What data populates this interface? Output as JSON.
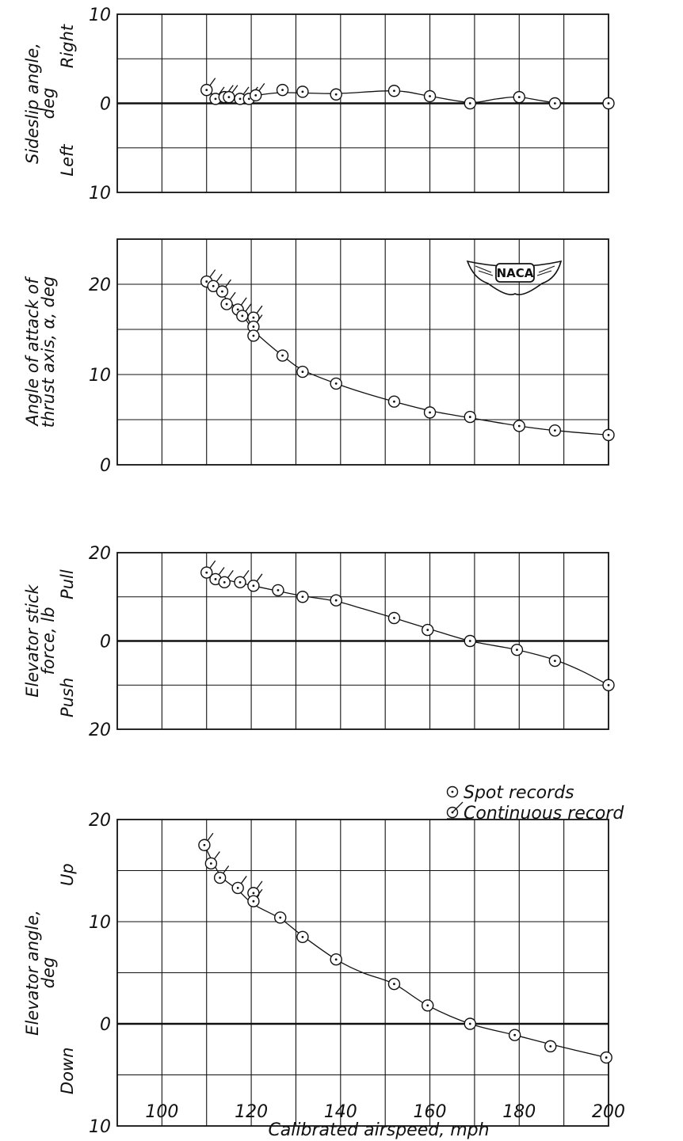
{
  "xaxis": {
    "label": "Calibrated airspeed, mph",
    "range": [
      90,
      200
    ],
    "ticks": [
      100,
      120,
      140,
      160,
      180,
      200
    ],
    "tick_labels": [
      "100",
      "120",
      "140",
      "160",
      "180",
      "200"
    ]
  },
  "legend": {
    "spot": "Spot records",
    "continuous": "Continuous record"
  },
  "logo": {
    "text": "NACA"
  },
  "chart_data": [
    {
      "type": "scatter",
      "ylabel_lines": [
        "Sideslip angle,",
        "deg"
      ],
      "ylabel_top": "Right",
      "ylabel_bottom": "Left",
      "ylim": [
        -10,
        10
      ],
      "y_tick_labels": [
        {
          "value": 10,
          "label": "10"
        },
        {
          "value": 0,
          "label": "0"
        },
        {
          "value": -10,
          "label": "10"
        }
      ],
      "grid": true,
      "series": [
        {
          "marker": "continuous",
          "x": [
            110,
            112,
            114,
            115,
            117.5,
            119.5,
            121
          ],
          "y": [
            1.5,
            0.5,
            0.7,
            0.7,
            0.5,
            0.5,
            0.9
          ]
        },
        {
          "marker": "spot",
          "x": [
            127,
            131.5,
            139,
            152,
            160,
            169,
            180,
            188,
            200
          ],
          "y": [
            1.5,
            1.3,
            1.0,
            1.4,
            0.8,
            0.0,
            0.7,
            0.0,
            0.0
          ]
        }
      ],
      "curve": {
        "x": [
          110,
          115,
          121,
          127,
          139,
          152,
          160,
          169,
          175,
          180,
          188,
          200
        ],
        "y": [
          1.2,
          0.7,
          0.9,
          1.2,
          1.1,
          1.4,
          0.8,
          0.1,
          0.5,
          0.7,
          0.1,
          0.0
        ]
      }
    },
    {
      "type": "scatter",
      "ylabel_lines": [
        "Angle of attack of",
        "thrust axis, α, deg"
      ],
      "ylim": [
        0,
        25
      ],
      "y_tick_labels": [
        {
          "value": 20,
          "label": "20"
        },
        {
          "value": 10,
          "label": "10"
        },
        {
          "value": 0,
          "label": "0"
        }
      ],
      "grid": true,
      "series": [
        {
          "marker": "continuous",
          "x": [
            110,
            111.5,
            113.5,
            114.5,
            117,
            118,
            120.5,
            120.5
          ],
          "y": [
            20.3,
            19.8,
            19.2,
            17.8,
            17.2,
            16.5,
            16.3,
            15.3
          ]
        },
        {
          "marker": "spot",
          "x": [
            120.5,
            127,
            131.5,
            139,
            152,
            160,
            169,
            180,
            188,
            200
          ],
          "y": [
            14.3,
            12.1,
            10.3,
            9.0,
            7.0,
            5.8,
            5.3,
            4.3,
            3.8,
            3.3
          ]
        }
      ],
      "curve": {
        "x": [
          110,
          114,
          118,
          120.5,
          124,
          127,
          131.5,
          139,
          145,
          152,
          160,
          169,
          180,
          188,
          200
        ],
        "y": [
          20.3,
          18.6,
          16.6,
          14.9,
          13.3,
          12.1,
          10.5,
          9.0,
          8.0,
          7.0,
          6.0,
          5.2,
          4.3,
          3.8,
          3.3
        ]
      }
    },
    {
      "type": "scatter",
      "ylabel_lines": [
        "Elevator stick",
        "force, lb"
      ],
      "ylabel_top": "Pull",
      "ylabel_bottom": "Push",
      "ylim": [
        -20,
        20
      ],
      "y_tick_labels": [
        {
          "value": 20,
          "label": "20"
        },
        {
          "value": 0,
          "label": "0"
        },
        {
          "value": -20,
          "label": "20"
        }
      ],
      "grid": true,
      "series": [
        {
          "marker": "continuous",
          "x": [
            110,
            112,
            114,
            117.5,
            120.5
          ],
          "y": [
            15.5,
            14.0,
            13.3,
            13.3,
            12.5
          ]
        },
        {
          "marker": "spot",
          "x": [
            126,
            131.5,
            139,
            152,
            159.5,
            169,
            179.5,
            188,
            200
          ],
          "y": [
            11.5,
            10.0,
            9.2,
            5.2,
            2.5,
            0.0,
            -2.0,
            -4.5,
            -10.0
          ]
        }
      ],
      "curve": {
        "x": [
          110,
          115,
          120.5,
          126,
          131.5,
          139,
          145,
          152,
          160,
          169,
          179.5,
          188,
          194,
          200
        ],
        "y": [
          15.0,
          13.7,
          12.5,
          11.3,
          10.2,
          9.0,
          7.3,
          5.2,
          2.7,
          0.0,
          -2.0,
          -4.3,
          -6.8,
          -10.0
        ]
      }
    },
    {
      "type": "scatter",
      "ylabel_lines": [
        "Elevator angle,",
        "deg"
      ],
      "ylabel_top": "Up",
      "ylabel_bottom": "Down",
      "ylim": [
        -10,
        20
      ],
      "y_tick_labels": [
        {
          "value": 20,
          "label": "20"
        },
        {
          "value": 10,
          "label": "10"
        },
        {
          "value": 0,
          "label": "0"
        },
        {
          "value": -10,
          "label": "10"
        }
      ],
      "grid": true,
      "series": [
        {
          "marker": "continuous",
          "x": [
            109.5,
            111,
            113,
            117,
            120.5,
            120.5
          ],
          "y": [
            17.5,
            15.7,
            14.3,
            13.3,
            12.8,
            12.0
          ]
        },
        {
          "marker": "spot",
          "x": [
            126.5,
            131.5,
            139,
            152,
            159.5,
            169,
            179,
            187,
            199.5
          ],
          "y": [
            10.4,
            8.5,
            6.3,
            3.9,
            1.8,
            0.0,
            -1.1,
            -2.2,
            -3.3
          ]
        }
      ],
      "curve": {
        "x": [
          109.5,
          113,
          117,
          120.5,
          126.5,
          131.5,
          139,
          145,
          152,
          159.5,
          169,
          179,
          187,
          199.5
        ],
        "y": [
          17.5,
          14.6,
          13.1,
          11.7,
          10.3,
          8.6,
          6.3,
          5.0,
          3.9,
          1.8,
          0.0,
          -1.1,
          -2.0,
          -3.3
        ]
      }
    }
  ]
}
